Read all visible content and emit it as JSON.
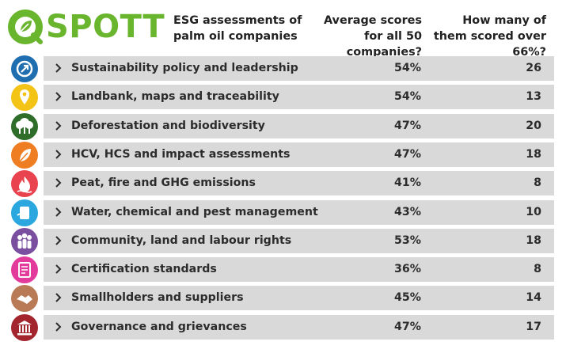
{
  "brand": {
    "name": "SPOTT",
    "color": "#6ab52e"
  },
  "header": {
    "title": "ESG assessments of palm oil companies",
    "avg_col": "Average scores for all 50 companies?",
    "count_col": "How many of them scored over 66%?"
  },
  "rows": [
    {
      "label": "Sustainability policy and leadership",
      "avg": "54%",
      "count": "26",
      "icon": "policy-arrow-icon",
      "color": "#1f6fb0"
    },
    {
      "label": "Landbank, maps and traceability",
      "avg": "54%",
      "count": "13",
      "icon": "map-pin-icon",
      "color": "#f3c316"
    },
    {
      "label": "Deforestation and biodiversity",
      "avg": "47%",
      "count": "20",
      "icon": "forest-icon",
      "color": "#2f6e2a"
    },
    {
      "label": "HCV, HCS and impact assessments",
      "avg": "47%",
      "count": "18",
      "icon": "leaf-icon",
      "color": "#ef7d22"
    },
    {
      "label": "Peat, fire and GHG emissions",
      "avg": "41%",
      "count": "8",
      "icon": "fire-icon",
      "color": "#e8434f"
    },
    {
      "label": "Water, chemical and pest management",
      "avg": "43%",
      "count": "10",
      "icon": "water-icon",
      "color": "#2aa7de"
    },
    {
      "label": "Community, land and labour rights",
      "avg": "53%",
      "count": "18",
      "icon": "community-icon",
      "color": "#7b4fa0"
    },
    {
      "label": "Certification standards",
      "avg": "36%",
      "count": "8",
      "icon": "certificate-icon",
      "color": "#e33b9b"
    },
    {
      "label": "Smallholders and suppliers",
      "avg": "45%",
      "count": "14",
      "icon": "handshake-icon",
      "color": "#b97a56"
    },
    {
      "label": "Governance and grievances",
      "avg": "47%",
      "count": "17",
      "icon": "courthouse-icon",
      "color": "#a3262e"
    }
  ]
}
